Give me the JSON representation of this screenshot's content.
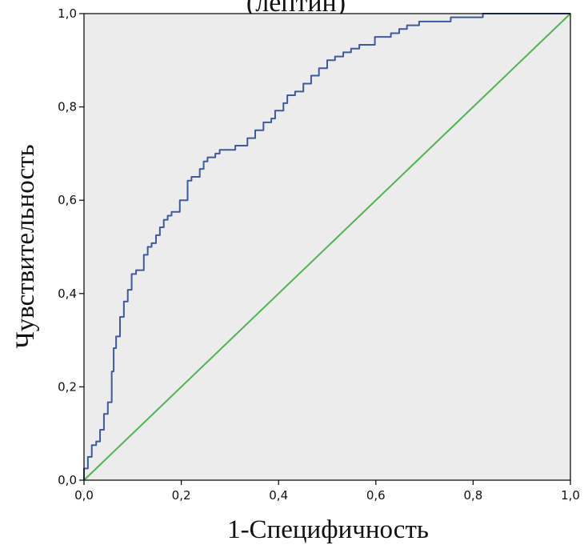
{
  "chart_data": {
    "type": "line",
    "title": "(лептин)",
    "xlabel": "1-Специфичность",
    "ylabel": "Чувствительность",
    "xlim": [
      0,
      1
    ],
    "ylim": [
      0,
      1
    ],
    "xticks": [
      "0,0",
      "0,2",
      "0,4",
      "0,6",
      "0,8",
      "1,0"
    ],
    "yticks": [
      "0,0",
      "0,2",
      "0,4",
      "0,6",
      "0,8",
      "1,0"
    ],
    "grid": false,
    "colors": {
      "roc": "#3d5a9e",
      "reference": "#4cb54c",
      "plot_background": "#ececec",
      "axis": "#000000"
    },
    "series": [
      {
        "x": [
          0,
          0,
          0.008,
          0.008,
          0.016,
          0.016,
          0.025,
          0.025,
          0.033,
          0.033,
          0.041,
          0.041,
          0.049,
          0.049,
          0.057,
          0.057,
          0.061,
          0.061,
          0.066,
          0.066,
          0.074,
          0.074,
          0.082,
          0.082,
          0.09,
          0.09,
          0.098,
          0.098,
          0.107,
          0.107,
          0.123,
          0.123,
          0.131,
          0.131,
          0.139,
          0.139,
          0.148,
          0.148,
          0.156,
          0.156,
          0.164,
          0.164,
          0.172,
          0.172,
          0.18,
          0.18,
          0.197,
          0.197,
          0.213,
          0.213,
          0.221,
          0.221,
          0.238,
          0.238,
          0.246,
          0.246,
          0.254,
          0.254,
          0.27,
          0.27,
          0.279,
          0.279,
          0.311,
          0.311,
          0.336,
          0.336,
          0.352,
          0.352,
          0.369,
          0.369,
          0.385,
          0.385,
          0.393,
          0.393,
          0.41,
          0.41,
          0.418,
          0.418,
          0.434,
          0.434,
          0.451,
          0.451,
          0.467,
          0.467,
          0.483,
          0.483,
          0.5,
          0.5,
          0.516,
          0.516,
          0.533,
          0.533,
          0.549,
          0.549,
          0.566,
          0.566,
          0.598,
          0.598,
          0.631,
          0.631,
          0.648,
          0.648,
          0.664,
          0.664,
          0.689,
          0.689,
          0.754,
          0.754,
          0.82,
          0.82,
          1
        ],
        "y": [
          0,
          0.025,
          0.025,
          0.05,
          0.05,
          0.075,
          0.075,
          0.083,
          0.083,
          0.108,
          0.108,
          0.142,
          0.142,
          0.167,
          0.167,
          0.233,
          0.233,
          0.283,
          0.283,
          0.308,
          0.308,
          0.35,
          0.35,
          0.383,
          0.383,
          0.408,
          0.408,
          0.442,
          0.442,
          0.45,
          0.45,
          0.483,
          0.483,
          0.5,
          0.5,
          0.508,
          0.508,
          0.525,
          0.525,
          0.542,
          0.542,
          0.558,
          0.558,
          0.567,
          0.567,
          0.575,
          0.575,
          0.6,
          0.6,
          0.642,
          0.642,
          0.65,
          0.65,
          0.667,
          0.667,
          0.683,
          0.683,
          0.692,
          0.692,
          0.7,
          0.7,
          0.708,
          0.708,
          0.717,
          0.717,
          0.733,
          0.733,
          0.75,
          0.75,
          0.767,
          0.767,
          0.775,
          0.775,
          0.792,
          0.792,
          0.808,
          0.808,
          0.825,
          0.825,
          0.833,
          0.833,
          0.85,
          0.85,
          0.867,
          0.867,
          0.883,
          0.883,
          0.9,
          0.9,
          0.908,
          0.908,
          0.917,
          0.917,
          0.925,
          0.925,
          0.933,
          0.933,
          0.95,
          0.95,
          0.958,
          0.958,
          0.967,
          0.967,
          0.975,
          0.975,
          0.983,
          0.983,
          0.992,
          0.992,
          1,
          1
        ]
      },
      {
        "x": [
          0,
          1
        ],
        "y": [
          0,
          1
        ]
      }
    ]
  }
}
